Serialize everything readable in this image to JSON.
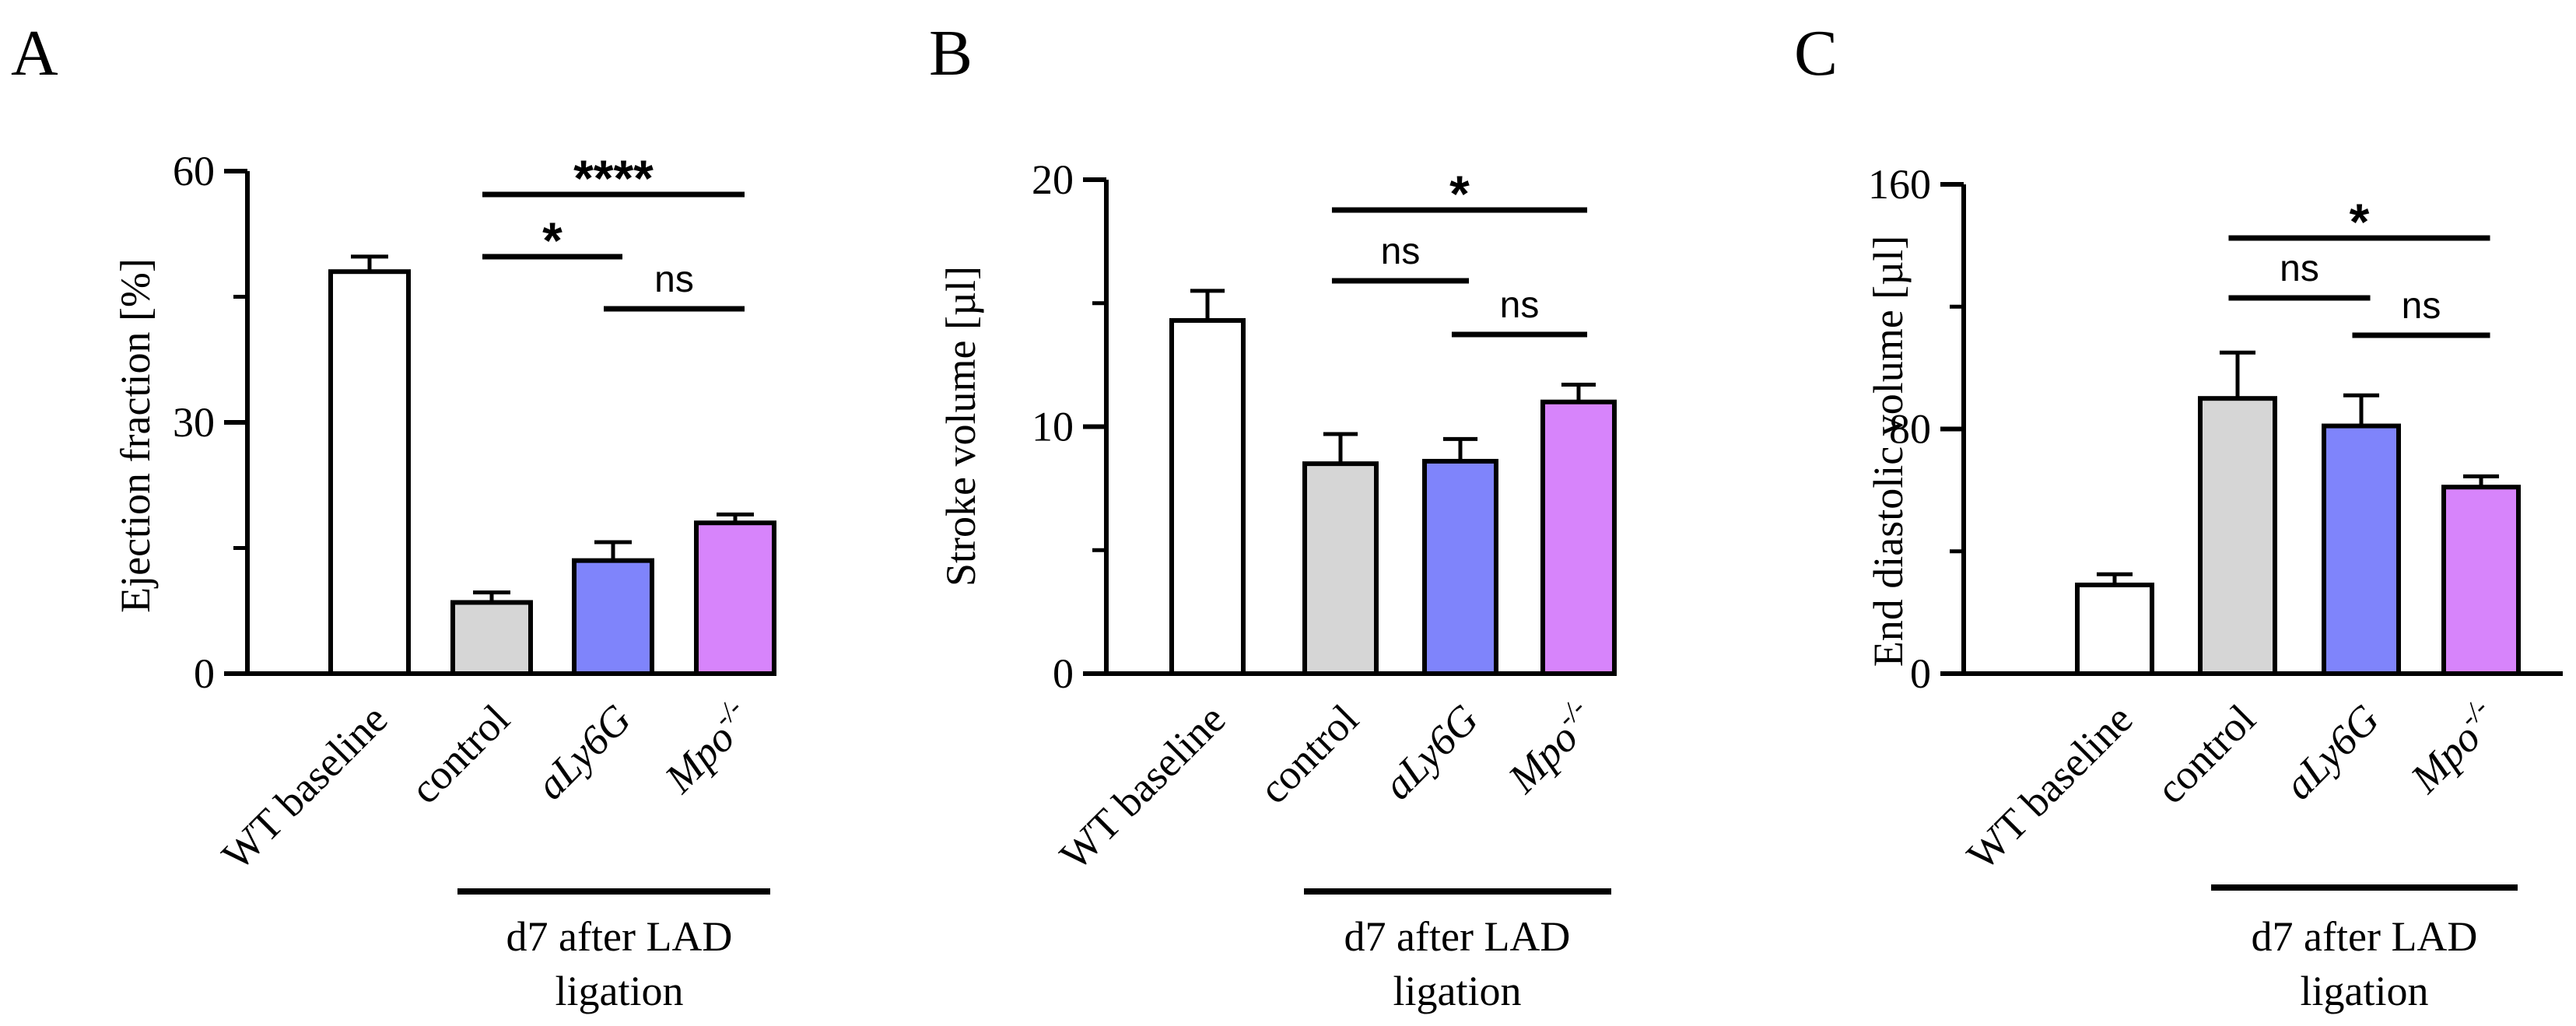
{
  "chart_data": [
    {
      "type": "bar",
      "panel_label": "A",
      "ylabel": "Ejection fraction [%]",
      "ylim": [
        0,
        60
      ],
      "yticks": [
        "0",
        "30",
        "60"
      ],
      "categories": [
        "WT baseline",
        "control",
        "aLy6G",
        "Mpo-/-"
      ],
      "category_display": [
        {
          "text": "WT baseline",
          "italic": false,
          "sup": ""
        },
        {
          "text": "control",
          "italic": false,
          "sup": ""
        },
        {
          "text": "aLy6G",
          "italic": true,
          "sup": ""
        },
        {
          "text": "Mpo",
          "italic": true,
          "sup": "-/-"
        }
      ],
      "values": [
        48,
        8.5,
        13.5,
        18
      ],
      "errors": [
        1.8,
        1.2,
        2.2,
        1.0
      ],
      "colors": [
        "#ffffff",
        "#d6d6d6",
        "#7f84fb",
        "#d784fb"
      ],
      "group_label": [
        "d7 after LAD",
        "ligation"
      ],
      "significance": [
        {
          "from": 1,
          "to": 3,
          "label": "****"
        },
        {
          "from": 1,
          "to": 2,
          "label": "*"
        },
        {
          "from": 2,
          "to": 3,
          "label": "ns"
        }
      ]
    },
    {
      "type": "bar",
      "panel_label": "B",
      "ylabel": "Stroke volume [µl]",
      "ylim": [
        0,
        20
      ],
      "yticks": [
        "0",
        "10",
        "20"
      ],
      "categories": [
        "WT baseline",
        "control",
        "aLy6G",
        "Mpo-/-"
      ],
      "category_display": [
        {
          "text": "WT baseline",
          "italic": false,
          "sup": ""
        },
        {
          "text": "control",
          "italic": false,
          "sup": ""
        },
        {
          "text": "aLy6G",
          "italic": true,
          "sup": ""
        },
        {
          "text": "Mpo",
          "italic": true,
          "sup": "-/-"
        }
      ],
      "values": [
        14.3,
        8.5,
        8.6,
        11.0
      ],
      "errors": [
        1.2,
        1.2,
        0.9,
        0.7
      ],
      "colors": [
        "#ffffff",
        "#d6d6d6",
        "#7f84fb",
        "#d784fb"
      ],
      "group_label": [
        "d7 after LAD",
        "ligation"
      ],
      "significance": [
        {
          "from": 1,
          "to": 3,
          "label": "*"
        },
        {
          "from": 1,
          "to": 2,
          "label": "ns"
        },
        {
          "from": 2,
          "to": 3,
          "label": "ns"
        }
      ]
    },
    {
      "type": "bar",
      "panel_label": "C",
      "ylabel": "End diastolic volume [µl]",
      "ylim": [
        0,
        160
      ],
      "yticks": [
        "0",
        "80",
        "160"
      ],
      "categories": [
        "WT baseline",
        "control",
        "aLy6G",
        "Mpo-/-"
      ],
      "category_display": [
        {
          "text": "WT baseline",
          "italic": false,
          "sup": ""
        },
        {
          "text": "control",
          "italic": false,
          "sup": ""
        },
        {
          "text": "aLy6G",
          "italic": true,
          "sup": ""
        },
        {
          "text": "Mpo",
          "italic": true,
          "sup": "-/-"
        }
      ],
      "values": [
        29,
        90,
        81,
        61
      ],
      "errors": [
        3.5,
        15,
        10,
        3.5
      ],
      "colors": [
        "#ffffff",
        "#d6d6d6",
        "#7f84fb",
        "#d784fb"
      ],
      "group_label": [
        "d7 after LAD",
        "ligation"
      ],
      "significance": [
        {
          "from": 1,
          "to": 3,
          "label": "*"
        },
        {
          "from": 1,
          "to": 2,
          "label": "ns"
        },
        {
          "from": 2,
          "to": 3,
          "label": "ns"
        }
      ]
    }
  ]
}
